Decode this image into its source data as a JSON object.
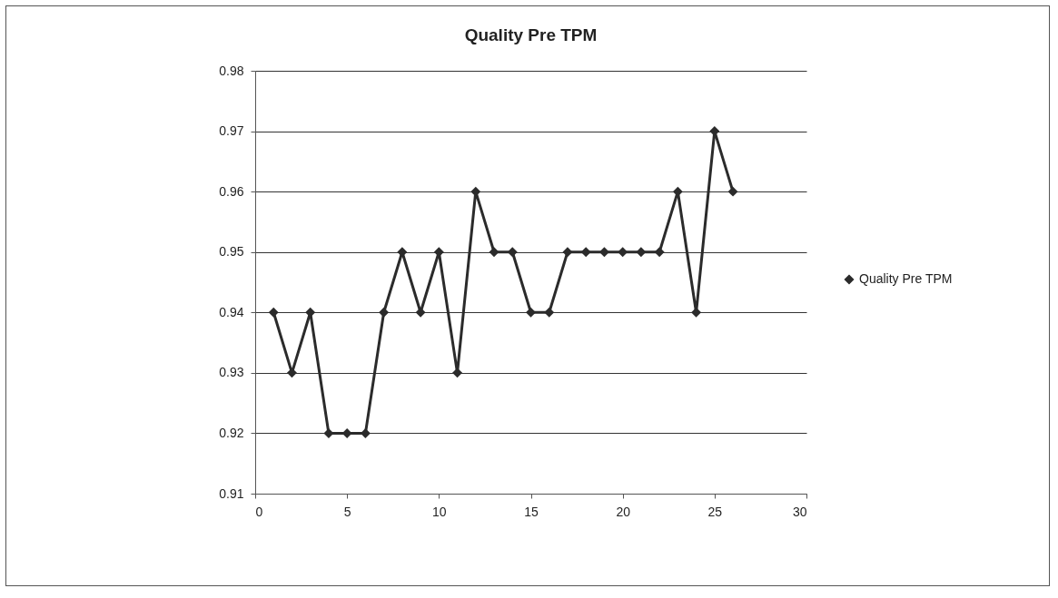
{
  "chart_data": {
    "type": "line",
    "title": "Quality Pre TPM",
    "x": [
      1,
      2,
      3,
      4,
      5,
      6,
      7,
      8,
      9,
      10,
      11,
      12,
      13,
      14,
      15,
      16,
      17,
      18,
      19,
      20,
      21,
      22,
      23,
      24,
      25,
      26
    ],
    "series": [
      {
        "name": "Quality Pre TPM",
        "color": "#2b2b2b",
        "values": [
          0.94,
          0.93,
          0.94,
          0.92,
          0.92,
          0.92,
          0.94,
          0.95,
          0.94,
          0.95,
          0.93,
          0.96,
          0.95,
          0.95,
          0.94,
          0.94,
          0.95,
          0.95,
          0.95,
          0.95,
          0.95,
          0.95,
          0.96,
          0.94,
          0.97,
          0.96
        ]
      }
    ],
    "xlim": [
      0,
      30
    ],
    "xticks": [
      0,
      5,
      10,
      15,
      20,
      25,
      30
    ],
    "ylim": [
      0.91,
      0.98
    ],
    "yticks": [
      0.91,
      0.92,
      0.93,
      0.94,
      0.95,
      0.96,
      0.97,
      0.98
    ],
    "grid": "y",
    "legend": "right",
    "marker": "diamond",
    "line_style": "solid"
  }
}
